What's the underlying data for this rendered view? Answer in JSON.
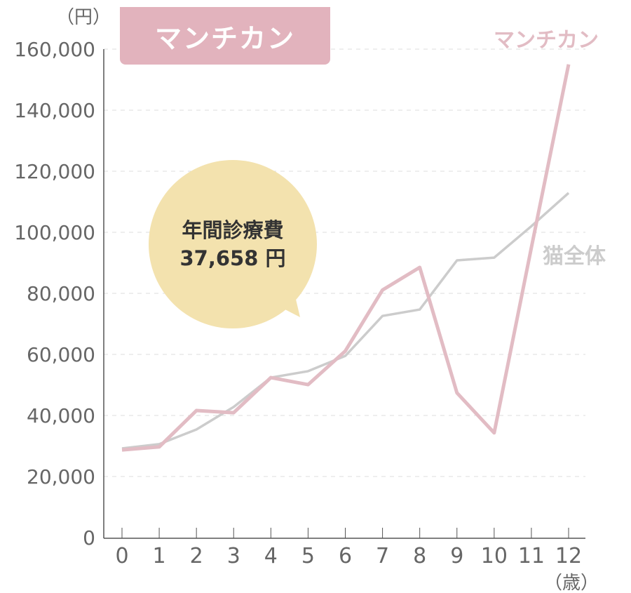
{
  "badge": "マンチカン",
  "units": {
    "y": "（円）",
    "x": "（歳）"
  },
  "bubble": {
    "line1": "年間診療費",
    "line2": "37,658 円"
  },
  "colors": {
    "breed": "#e2bcc4",
    "all": "#cccccc",
    "badge": "#e2b3bd",
    "bubble": "#f3e2ae"
  },
  "chart_data": {
    "type": "line",
    "title": "マンチカン",
    "xlabel": "（歳）",
    "ylabel": "（円）",
    "x": [
      0,
      1,
      2,
      3,
      4,
      5,
      6,
      7,
      8,
      9,
      10,
      11,
      12
    ],
    "ylim": [
      0,
      160000
    ],
    "yticks": [
      0,
      20000,
      40000,
      60000,
      80000,
      100000,
      120000,
      140000,
      160000
    ],
    "ytick_labels": [
      "0",
      "20,000",
      "40,000",
      "60,000",
      "80,000",
      "100,000",
      "120,000",
      "140,000",
      "160,000"
    ],
    "series": [
      {
        "name": "マンチカン",
        "values": [
          28700,
          29700,
          41600,
          40900,
          52400,
          50100,
          61100,
          81100,
          88500,
          47400,
          34300,
          95000,
          155000
        ]
      },
      {
        "name": "猫全体",
        "values": [
          29200,
          30600,
          35400,
          42800,
          52400,
          54500,
          59500,
          72600,
          74700,
          90800,
          91700,
          102000,
          112900
        ]
      }
    ],
    "grid": "horizontal-dashed",
    "legend": "inline-right"
  }
}
